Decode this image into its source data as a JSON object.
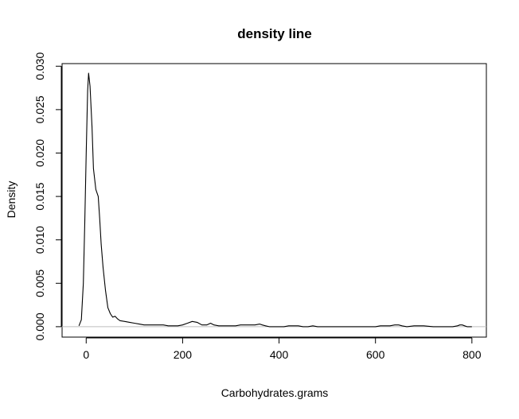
{
  "chart_data": {
    "type": "line",
    "title": "density line",
    "xlabel": "Carbohydrates.grams",
    "ylabel": "Density",
    "xlim": [
      -50,
      830
    ],
    "ylim": [
      -0.0012,
      0.0303
    ],
    "x_ticks": [
      0,
      200,
      400,
      600,
      800
    ],
    "x_tick_labels": [
      "0",
      "200",
      "400",
      "600",
      "800"
    ],
    "y_ticks": [
      0.0,
      0.005,
      0.01,
      0.015,
      0.02,
      0.025,
      0.03
    ],
    "y_tick_labels": [
      "0.000",
      "0.005",
      "0.010",
      "0.015",
      "0.020",
      "0.025",
      "0.030"
    ],
    "grid": false,
    "baseline": 0,
    "colors": {
      "line": "#000000",
      "baseline": "#bebebe",
      "frame": "#000000"
    },
    "series": [
      {
        "x": [
          -15,
          -10,
          -6,
          -3,
          0,
          3,
          5,
          8,
          12,
          15,
          20,
          25,
          28,
          31,
          35,
          40,
          45,
          50,
          55,
          60,
          65,
          70,
          80,
          90,
          100,
          110,
          120,
          130,
          140,
          150,
          160,
          170,
          180,
          190,
          200,
          210,
          220,
          230,
          240,
          250,
          258,
          265,
          275,
          285,
          300,
          310,
          320,
          330,
          340,
          350,
          360,
          365,
          372,
          380,
          390,
          400,
          410,
          420,
          430,
          440,
          450,
          460,
          470,
          480,
          500,
          520,
          540,
          560,
          580,
          600,
          610,
          620,
          630,
          640,
          648,
          655,
          665,
          680,
          700,
          720,
          740,
          760,
          770,
          775,
          780,
          785,
          790,
          800
        ],
        "y": [
          0.0001,
          0.0008,
          0.005,
          0.012,
          0.02,
          0.0272,
          0.0292,
          0.0277,
          0.023,
          0.0182,
          0.0158,
          0.015,
          0.0125,
          0.0095,
          0.0068,
          0.0042,
          0.0022,
          0.0015,
          0.0011,
          0.0012,
          0.0009,
          0.0007,
          0.0006,
          0.0005,
          0.0004,
          0.0003,
          0.0002,
          0.0002,
          0.0002,
          0.0002,
          0.0002,
          0.0001,
          0.0001,
          0.0001,
          0.0002,
          0.0004,
          0.0006,
          0.0005,
          0.0002,
          0.0002,
          0.0004,
          0.0002,
          0.0001,
          0.0001,
          0.0001,
          0.0001,
          0.0002,
          0.0002,
          0.0002,
          0.0002,
          0.0003,
          0.0002,
          0.0001,
          0.0,
          0.0,
          0.0,
          0.0,
          0.0001,
          0.0001,
          0.0001,
          0.0,
          0.0,
          0.0001,
          0.0,
          0.0,
          0.0,
          0.0,
          0.0,
          0.0,
          0.0,
          0.0001,
          0.0001,
          0.0001,
          0.0002,
          0.0002,
          0.0001,
          0.0,
          0.0001,
          0.0001,
          0.0,
          0.0,
          0.0,
          0.0001,
          0.0002,
          0.0002,
          0.0001,
          0.0,
          0.0
        ]
      }
    ]
  }
}
